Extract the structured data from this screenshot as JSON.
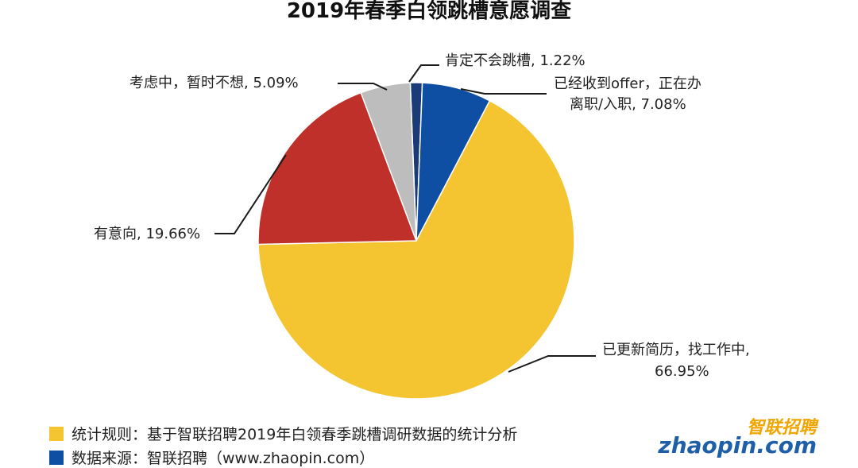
{
  "chart_data": {
    "type": "pie",
    "title": "2019年春季白领跳槽意愿调查",
    "slices": [
      {
        "label": "肯定不会跳槽",
        "value": 1.22,
        "value_text": "1.22%",
        "color": "#1a3a78"
      },
      {
        "label": "已经收到offer，正在办离职/入职",
        "value": 7.08,
        "value_text": "7.08%",
        "color": "#0e4fa3"
      },
      {
        "label": "已更新简历，找工作中",
        "value": 66.95,
        "value_text": "66.95%",
        "color": "#f4c431"
      },
      {
        "label": "有意向",
        "value": 19.66,
        "value_text": "19.66%",
        "color": "#c0302a"
      },
      {
        "label": "考虑中，暂时不想",
        "value": 5.09,
        "value_text": "5.09%",
        "color": "#bdbdbd"
      }
    ],
    "label_texts": {
      "s0": "肯定不会跳槽, 1.22%",
      "s1_line1": "已经收到offer，正在办",
      "s1_line2": "离职/入职, 7.08%",
      "s2_line1": "已更新简历，找工作中,",
      "s2_line2": "66.95%",
      "s3": "有意向, 19.66%",
      "s4": "考虑中，暂时不想, 5.09%"
    }
  },
  "footer": {
    "rule_text": "统计规则：基于智联招聘2019年白领春季跳槽调研数据的统计分析",
    "rule_color": "#f4c431",
    "source_text": "数据来源：智联招聘（www.zhaopin.com）",
    "source_color": "#0e4fa3"
  },
  "logo": {
    "cn": "智联招聘",
    "en": "zhaopin.com"
  }
}
